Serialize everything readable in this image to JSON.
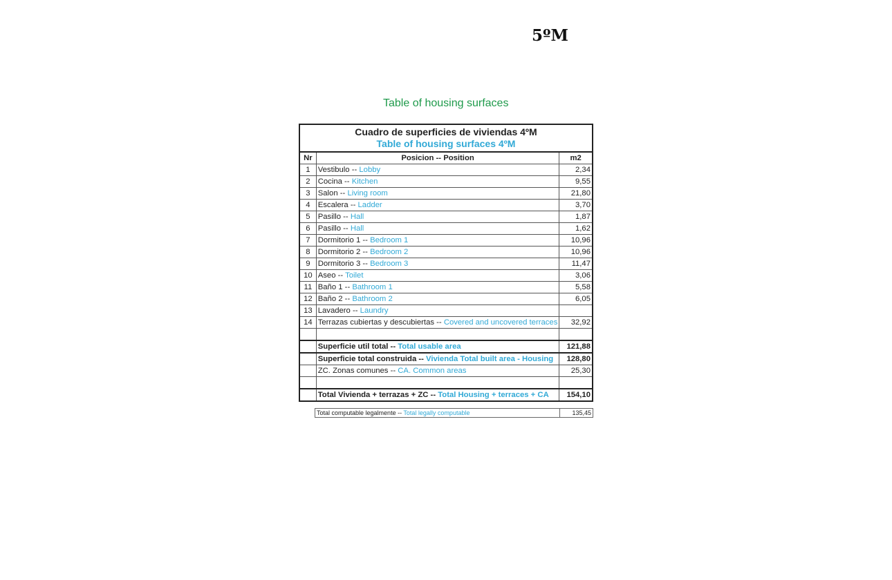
{
  "heading": "5ºM",
  "subtitle": "Table of housing surfaces",
  "table": {
    "title_es": "Cuadro de superficies de viviendas 4ºM",
    "title_en": "Table of housing surfaces 4ºM",
    "headers": [
      "Nr",
      "Posicion -- Position",
      "m2"
    ],
    "rows": [
      {
        "nr": "1",
        "es": "Vestibulo -- ",
        "en": "Lobby",
        "m2": "2,34"
      },
      {
        "nr": "2",
        "es": "Cocina --  ",
        "en": "Kitchen",
        "m2": "9,55"
      },
      {
        "nr": "3",
        "es": "Salon -- ",
        "en": "Living room",
        "m2": "21,80"
      },
      {
        "nr": "4",
        "es": "Escalera -- ",
        "en": "Ladder",
        "m2": "3,70"
      },
      {
        "nr": "5",
        "es": "Pasillo -- ",
        "en": "Hall",
        "m2": "1,87"
      },
      {
        "nr": "6",
        "es": "Pasillo -- ",
        "en": "Hall",
        "m2": "1,62"
      },
      {
        "nr": "7",
        "es": "Dormitorio 1 -- ",
        "en": "Bedroom 1",
        "m2": "10,96"
      },
      {
        "nr": "8",
        "es": "Dormitorio 2 -- ",
        "en": "Bedroom 2",
        "m2": "10,96"
      },
      {
        "nr": "9",
        "es": "Dormitorio 3 -- ",
        "en": "Bedroom 3",
        "m2": "11,47"
      },
      {
        "nr": "10",
        "es": "Aseo -- ",
        "en": "Toilet",
        "m2": "3,06"
      },
      {
        "nr": "11",
        "es": "Baño 1 -- ",
        "en": "Bathroom 1",
        "m2": "5,58"
      },
      {
        "nr": "12",
        "es": "Baño 2 -- ",
        "en": "Bathroom 2",
        "m2": "6,05"
      },
      {
        "nr": "13",
        "es": "Lavadero -- ",
        "en": "Laundry",
        "m2": ""
      },
      {
        "nr": "14",
        "es": "Terrazas cubiertas y descubiertas -- ",
        "en": "Covered and uncovered terraces",
        "m2": "32,92"
      }
    ],
    "usable": {
      "es": "Superficie util total -- ",
      "en": "Total usable area",
      "m2": "121,88"
    },
    "built": {
      "es": "Superficie total construida -- ",
      "en": "Vivienda Total built area - Housing",
      "m2": "128,80"
    },
    "common": {
      "es": "ZC. Zonas comunes  -- ",
      "en": "CA. Common areas",
      "m2": "25,30"
    },
    "total": {
      "es": "Total Vivienda + terrazas + ZC  -- ",
      "en": "Total Housing + terraces + CA",
      "m2": "154,10"
    },
    "legal": {
      "es": "Total computable legalmente -- ",
      "en": "Total legally computable",
      "m2": "135,45"
    }
  }
}
